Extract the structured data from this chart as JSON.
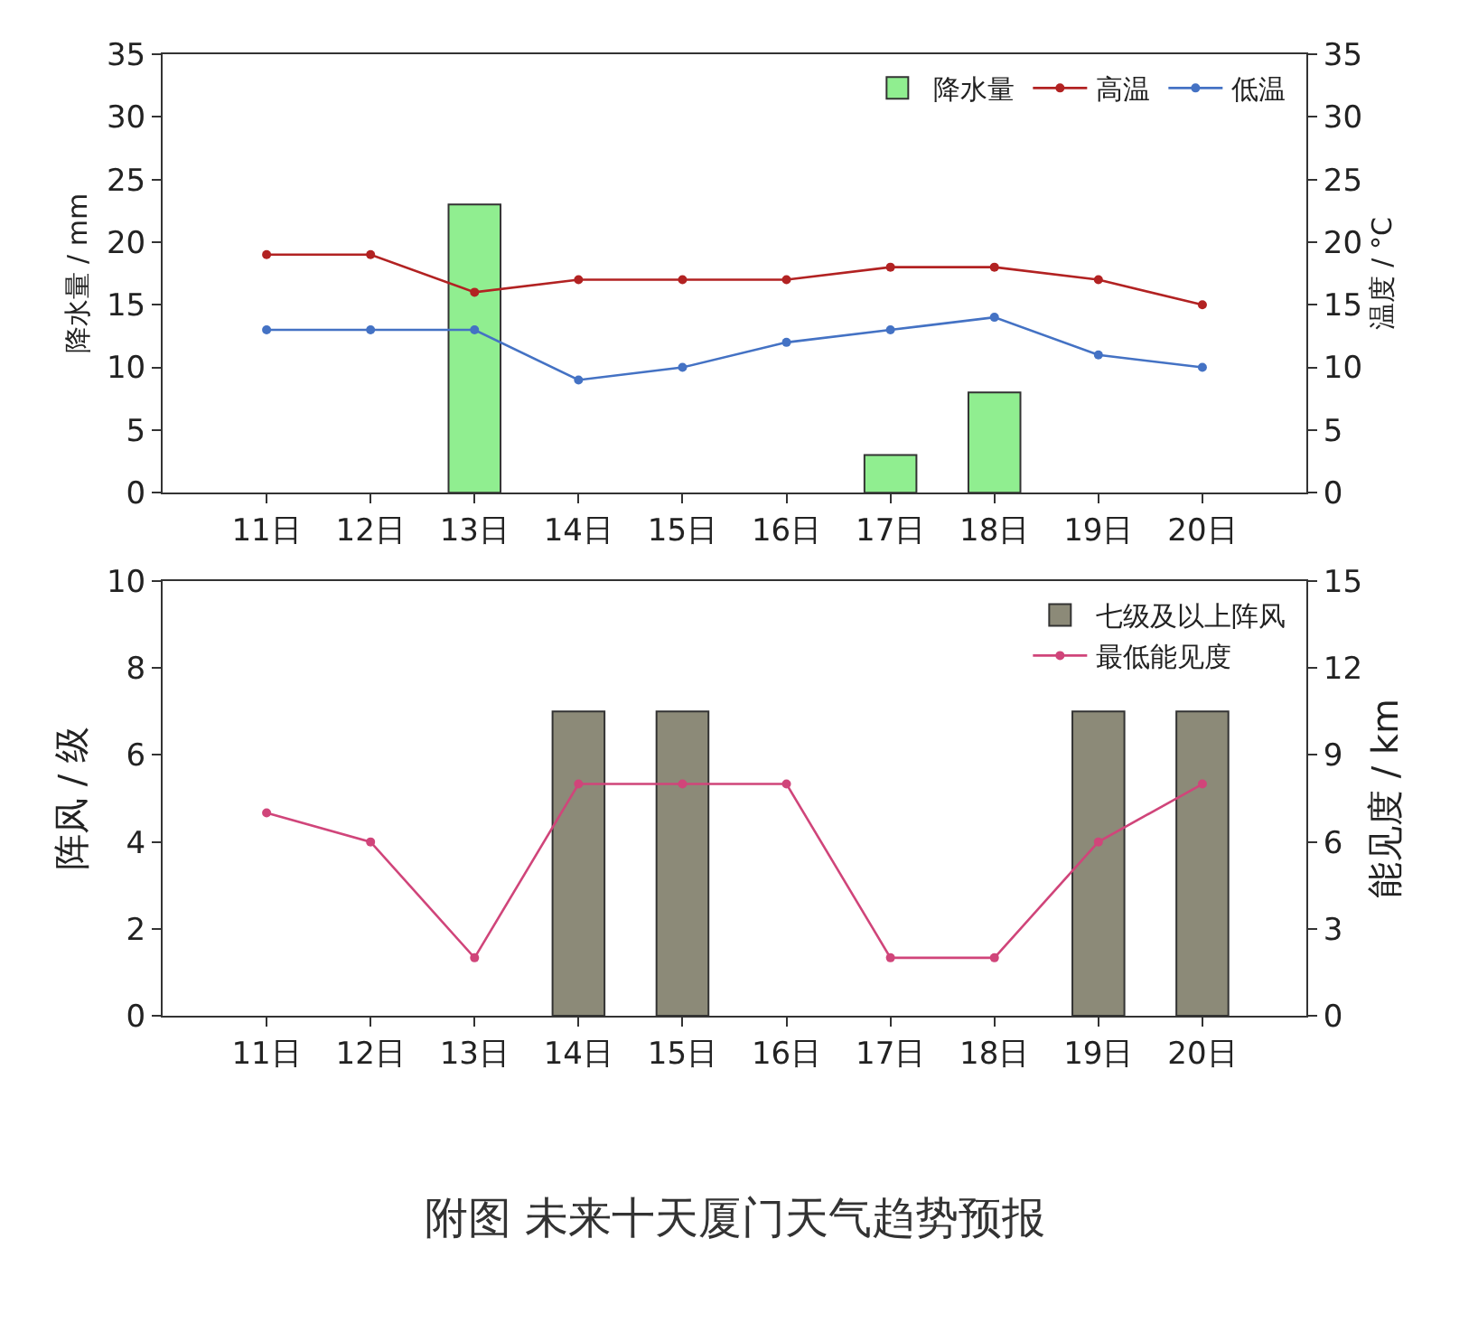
{
  "chart_data": [
    {
      "type": "bar",
      "categories": [
        "11日",
        "12日",
        "13日",
        "14日",
        "15日",
        "16日",
        "17日",
        "18日",
        "19日",
        "20日"
      ],
      "ylabel": "降水量 / mm",
      "y2label": "温度 / °C",
      "ylim": [
        0,
        35
      ],
      "yticks": [
        0,
        5,
        10,
        15,
        20,
        25,
        30,
        35
      ],
      "y2lim": [
        0,
        35
      ],
      "y2ticks": [
        0,
        5,
        10,
        15,
        20,
        25,
        30,
        35
      ],
      "legend": "top right",
      "marker": "circle",
      "series": [
        {
          "name": "降水量",
          "color": "#90ee90",
          "values": [
            null,
            null,
            23,
            null,
            null,
            null,
            3,
            8,
            null,
            null
          ]
        },
        {
          "name": "高温",
          "type": "line",
          "axis": "y2",
          "color": "#b22222",
          "values": [
            19,
            19,
            16,
            17,
            17,
            17,
            18,
            18,
            17,
            15
          ]
        },
        {
          "name": "低温",
          "type": "line",
          "axis": "y2",
          "color": "#4472c4",
          "values": [
            13,
            13,
            13,
            9,
            10,
            12,
            13,
            14,
            11,
            10
          ]
        }
      ]
    },
    {
      "type": "bar",
      "categories": [
        "11日",
        "12日",
        "13日",
        "14日",
        "15日",
        "16日",
        "17日",
        "18日",
        "19日",
        "20日"
      ],
      "ylabel": "阵风 / 级",
      "y2label": "能见度 / km",
      "ylim": [
        0,
        10
      ],
      "yticks": [
        0,
        2,
        4,
        6,
        8,
        10
      ],
      "y2lim": [
        0,
        15
      ],
      "y2ticks": [
        0,
        3,
        6,
        9,
        12,
        15
      ],
      "legend": "top right",
      "marker": "circle",
      "annotations": [
        "附图 未来十天厦门天气趋势预报"
      ],
      "series": [
        {
          "name": "七级及以上阵风",
          "color": "#8c8a78",
          "values": [
            null,
            null,
            null,
            7,
            7,
            null,
            null,
            null,
            7,
            7
          ]
        },
        {
          "name": "最低能见度",
          "type": "line",
          "axis": "y2",
          "color": "#d0457a",
          "values": [
            7,
            6,
            2,
            8,
            8,
            8,
            2,
            2,
            6,
            8
          ]
        }
      ]
    }
  ]
}
